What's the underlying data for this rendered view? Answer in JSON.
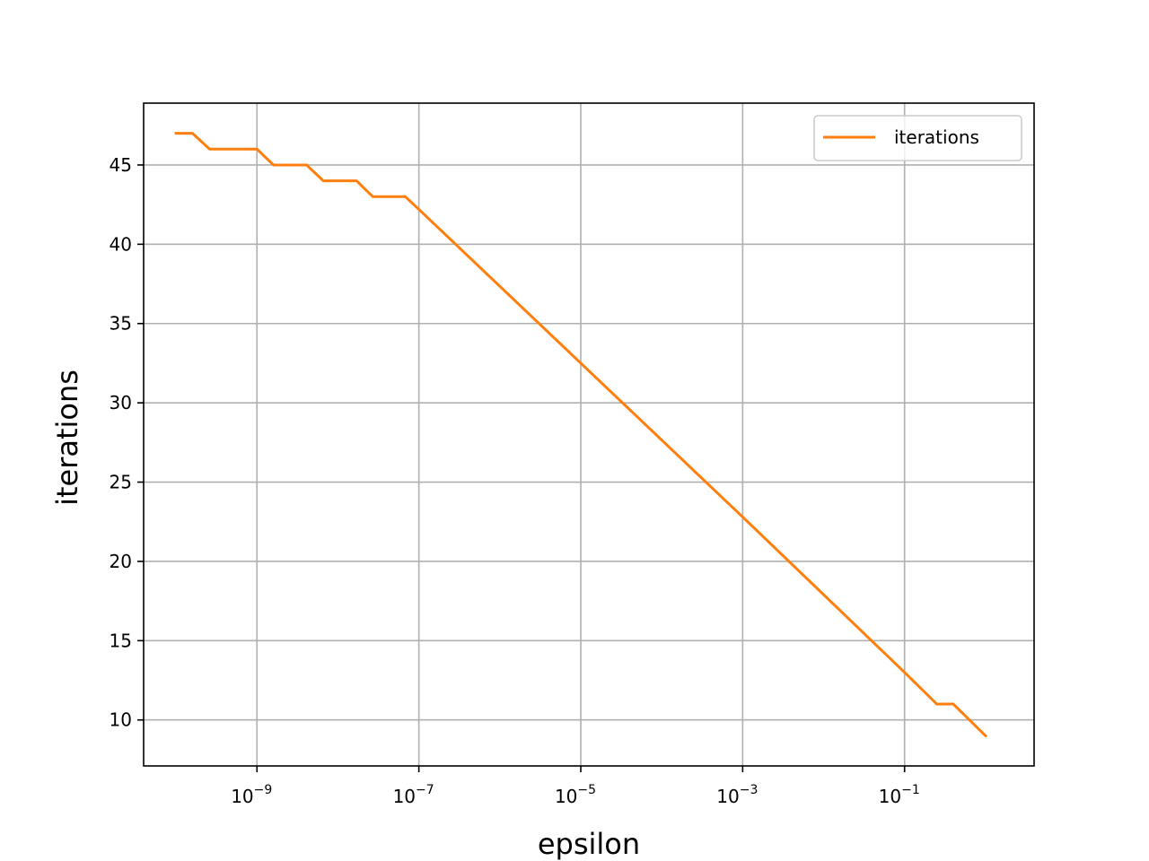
{
  "chart_data": {
    "type": "line",
    "title": "",
    "xlabel": "epsilon",
    "ylabel": "iterations",
    "xscale": "log",
    "xlim": [
      3.98e-11,
      3.98
    ],
    "ylim": [
      7.1,
      48.9
    ],
    "grid": true,
    "legend": {
      "position": "top-right"
    },
    "x_ticks": [
      {
        "value": 1e-09,
        "base": "10",
        "exp": "−9"
      },
      {
        "value": 1e-07,
        "base": "10",
        "exp": "−7"
      },
      {
        "value": 1e-05,
        "base": "10",
        "exp": "−5"
      },
      {
        "value": 0.001,
        "base": "10",
        "exp": "−3"
      },
      {
        "value": 0.1,
        "base": "10",
        "exp": "−1"
      }
    ],
    "y_ticks": [
      10,
      15,
      20,
      25,
      30,
      35,
      40,
      45
    ],
    "series": [
      {
        "name": "iterations",
        "color": "#ff7f0e",
        "x": [
          1e-10,
          1.6e-10,
          2.6e-10,
          1e-09,
          1.6e-09,
          4.1e-09,
          6.6e-09,
          1.7e-08,
          2.7e-08,
          6.8e-08,
          1e-07,
          1e-05,
          0.001,
          0.1,
          0.25,
          0.4,
          1.0
        ],
        "y": [
          47,
          47,
          46,
          46,
          45,
          45,
          44,
          44,
          43,
          43,
          42.2,
          32.5,
          22.8,
          13,
          11,
          11,
          9
        ]
      }
    ]
  }
}
